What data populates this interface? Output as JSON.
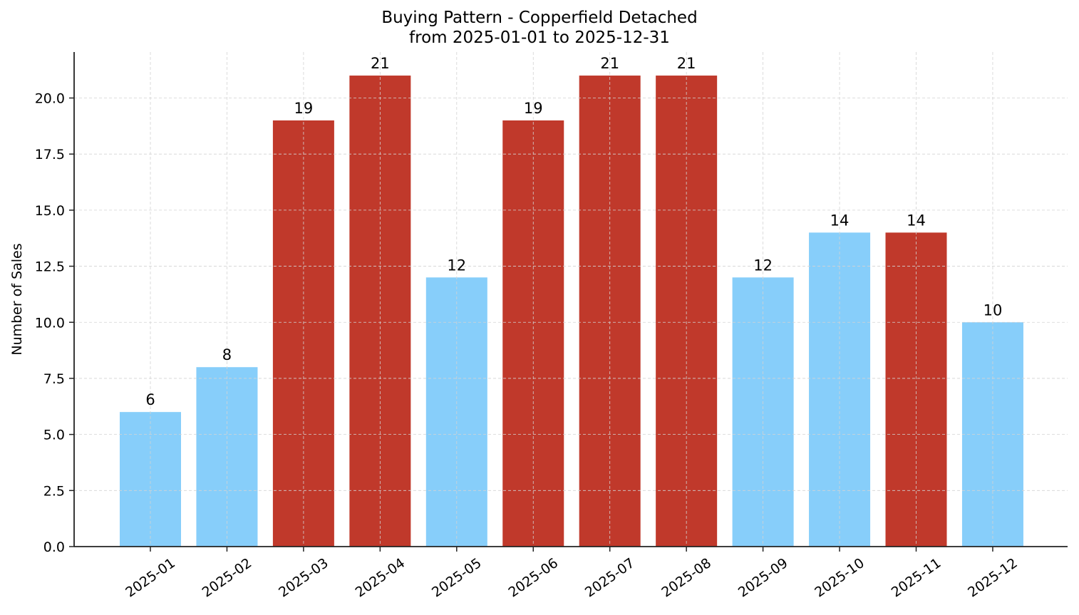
{
  "chart_data": {
    "type": "bar",
    "title": "Buying Pattern - Copperfield Detached",
    "subtitle": "from 2025-01-01 to 2025-12-31",
    "xlabel": "",
    "ylabel": "Number of Sales",
    "categories": [
      "2025-01",
      "2025-02",
      "2025-03",
      "2025-04",
      "2025-05",
      "2025-06",
      "2025-07",
      "2025-08",
      "2025-09",
      "2025-10",
      "2025-11",
      "2025-12"
    ],
    "values": [
      6,
      8,
      19,
      21,
      12,
      19,
      21,
      21,
      12,
      14,
      14,
      10
    ],
    "bar_colors": [
      "#87cefa",
      "#87cefa",
      "#c0392b",
      "#c0392b",
      "#87cefa",
      "#c0392b",
      "#c0392b",
      "#c0392b",
      "#87cefa",
      "#87cefa",
      "#c0392b",
      "#87cefa"
    ],
    "data_labels": [
      "6",
      "8",
      "19",
      "21",
      "12",
      "19",
      "21",
      "21",
      "12",
      "14",
      "14",
      "10"
    ],
    "ylim": [
      0,
      22.05
    ],
    "yticks": [
      0.0,
      2.5,
      5.0,
      7.5,
      10.0,
      12.5,
      15.0,
      17.5,
      20.0
    ],
    "ytick_labels": [
      "0.0",
      "2.5",
      "5.0",
      "7.5",
      "10.0",
      "12.5",
      "15.0",
      "17.5",
      "20.0"
    ],
    "xtick_rotation": 35,
    "grid": true,
    "grid_style": "dashed",
    "legend": null
  },
  "colors": {
    "high": "#c0392b",
    "normal": "#87cefa",
    "grid": "#d3d3d3",
    "axis": "#222222"
  }
}
